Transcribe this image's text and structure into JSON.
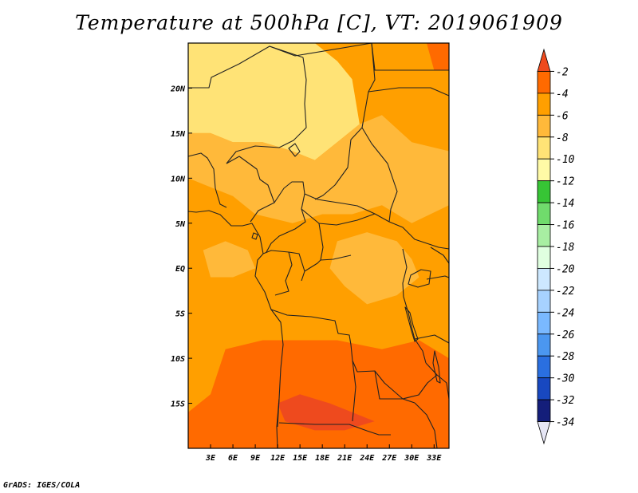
{
  "title": "Temperature at 500hPa [C], VT: 2019061909",
  "credit": "GrADS: IGES/COLA",
  "map": {
    "lon_range": [
      0,
      35
    ],
    "lat_range": [
      -20,
      25
    ],
    "x_ticks": [
      {
        "value": 3,
        "label": "3E"
      },
      {
        "value": 6,
        "label": "6E"
      },
      {
        "value": 9,
        "label": "9E"
      },
      {
        "value": 12,
        "label": "12E"
      },
      {
        "value": 15,
        "label": "15E"
      },
      {
        "value": 18,
        "label": "18E"
      },
      {
        "value": 21,
        "label": "21E"
      },
      {
        "value": 24,
        "label": "24E"
      },
      {
        "value": 27,
        "label": "27E"
      },
      {
        "value": 30,
        "label": "30E"
      },
      {
        "value": 33,
        "label": "33E"
      }
    ],
    "y_ticks": [
      {
        "value": 20,
        "label": "20N"
      },
      {
        "value": 15,
        "label": "15N"
      },
      {
        "value": 10,
        "label": "10N"
      },
      {
        "value": 5,
        "label": "5N"
      },
      {
        "value": 0,
        "label": "EQ"
      },
      {
        "value": -5,
        "label": "5S"
      },
      {
        "value": -10,
        "label": "10S"
      },
      {
        "value": -15,
        "label": "15S"
      }
    ]
  },
  "colorbar": {
    "labels": [
      "-2",
      "-4",
      "-6",
      "-8",
      "-10",
      "-12",
      "-14",
      "-16",
      "-18",
      "-20",
      "-22",
      "-24",
      "-26",
      "-28",
      "-30",
      "-32",
      "-34"
    ],
    "colors": [
      "#ee4a1e",
      "#ff6a00",
      "#ff9f00",
      "#ffb93a",
      "#ffe376",
      "#fffaa6",
      "#37c535",
      "#70db6c",
      "#a8eea2",
      "#e0ffe0",
      "#cde8ff",
      "#a7d2ff",
      "#7ab9ff",
      "#4b97f0",
      "#2a6fe0",
      "#1848c0",
      "#141e7a",
      "#e6e6f5"
    ]
  },
  "temperature_regions": [
    {
      "value": -10,
      "color": "#ffe376",
      "polygon": [
        [
          0,
          25
        ],
        [
          17,
          25
        ],
        [
          20,
          23
        ],
        [
          22,
          21
        ],
        [
          23,
          16
        ],
        [
          20,
          14
        ],
        [
          17,
          12
        ],
        [
          14,
          13
        ],
        [
          10,
          14
        ],
        [
          6,
          14
        ],
        [
          3,
          15
        ],
        [
          0,
          15
        ]
      ]
    },
    {
      "value": -8,
      "color": "#ffb93a",
      "polygon": [
        [
          0,
          15
        ],
        [
          3,
          15
        ],
        [
          6,
          14
        ],
        [
          10,
          14
        ],
        [
          14,
          13
        ],
        [
          17,
          12
        ],
        [
          20,
          14
        ],
        [
          23,
          16
        ],
        [
          26,
          17
        ],
        [
          30,
          14
        ],
        [
          35,
          13
        ],
        [
          35,
          7
        ],
        [
          30,
          5
        ],
        [
          26,
          7
        ],
        [
          22,
          6
        ],
        [
          18,
          6
        ],
        [
          14,
          5
        ],
        [
          9,
          6
        ],
        [
          6,
          8
        ],
        [
          3,
          9
        ],
        [
          0,
          10
        ]
      ]
    },
    {
      "value": -8,
      "color": "#ffb93a",
      "polygon": [
        [
          2,
          2
        ],
        [
          5,
          3
        ],
        [
          8,
          2
        ],
        [
          9,
          0
        ],
        [
          6,
          -1
        ],
        [
          3,
          -1
        ]
      ]
    },
    {
      "value": -8,
      "color": "#ffb93a",
      "polygon": [
        [
          20,
          3
        ],
        [
          24,
          4
        ],
        [
          28,
          3
        ],
        [
          30,
          1
        ],
        [
          31,
          -1
        ],
        [
          28,
          -3
        ],
        [
          24,
          -4
        ],
        [
          21,
          -2
        ],
        [
          19,
          0
        ]
      ]
    },
    {
      "value": -4,
      "color": "#ff6a00",
      "polygon": [
        [
          3,
          -14
        ],
        [
          0,
          -16
        ],
        [
          0,
          -20
        ],
        [
          35,
          -20
        ],
        [
          35,
          -10
        ],
        [
          31,
          -8
        ],
        [
          26,
          -9
        ],
        [
          20,
          -8
        ],
        [
          14,
          -8
        ],
        [
          10,
          -8
        ],
        [
          5,
          -9
        ]
      ]
    },
    {
      "value": -2,
      "color": "#ee4a1e",
      "polygon": [
        [
          12,
          -15
        ],
        [
          15,
          -14
        ],
        [
          19,
          -15
        ],
        [
          22,
          -16
        ],
        [
          25,
          -17
        ],
        [
          21,
          -18
        ],
        [
          17,
          -18
        ],
        [
          13,
          -17
        ]
      ]
    },
    {
      "value": -4,
      "color": "#ff6a00",
      "polygon": [
        [
          32,
          25
        ],
        [
          35,
          25
        ],
        [
          35,
          22
        ],
        [
          33,
          22
        ]
      ]
    }
  ],
  "background_value": {
    "value": -6,
    "color": "#ff9f00"
  }
}
